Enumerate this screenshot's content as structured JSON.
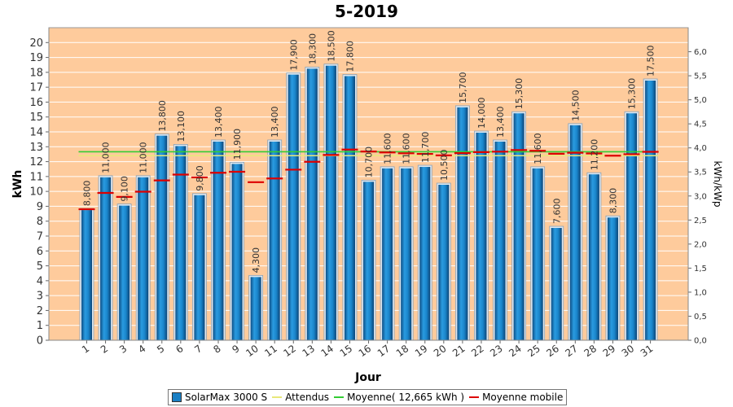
{
  "chart_data": {
    "type": "bar",
    "title": "5-2019",
    "xlabel": "Jour",
    "ylabel": "kWh",
    "y2label": "kWh/kWp",
    "ylim": [
      0,
      21
    ],
    "y2lim": [
      0,
      6.5
    ],
    "yticks": [
      "0",
      "1",
      "2",
      "3",
      "4",
      "5",
      "6",
      "7",
      "8",
      "9",
      "10",
      "11",
      "12",
      "13",
      "14",
      "15",
      "16",
      "17",
      "18",
      "19",
      "20"
    ],
    "y2ticks": [
      "0,0",
      "0,5",
      "1,0",
      "1,5",
      "2,0",
      "2,5",
      "3,0",
      "3,5",
      "4,0",
      "4,5",
      "5,0",
      "5,5",
      "6,0"
    ],
    "categories": [
      "1",
      "2",
      "3",
      "4",
      "5",
      "6",
      "7",
      "8",
      "9",
      "10",
      "11",
      "12",
      "13",
      "14",
      "15",
      "16",
      "17",
      "18",
      "19",
      "20",
      "21",
      "22",
      "23",
      "24",
      "25",
      "26",
      "27",
      "28",
      "29",
      "30",
      "31"
    ],
    "series": [
      {
        "name": "SolarMax 3000 S",
        "type": "bar",
        "color": "#1a7fc4",
        "values": [
          8.8,
          11.0,
          9.1,
          11.0,
          13.8,
          13.1,
          9.8,
          13.4,
          11.9,
          4.3,
          13.4,
          17.9,
          18.3,
          18.5,
          17.8,
          10.7,
          11.6,
          11.6,
          11.7,
          10.5,
          15.7,
          14.0,
          13.4,
          15.3,
          11.6,
          7.6,
          14.5,
          11.2,
          8.3,
          15.3,
          17.5
        ],
        "labels": [
          "8,800",
          "11,000",
          "9,100",
          "11,000",
          "13,800",
          "13,100",
          "9,800",
          "13,400",
          "11,900",
          "4,300",
          "13,400",
          "17,900",
          "18,300",
          "18,500",
          "17,800",
          "10,700",
          "11,600",
          "11,600",
          "11,700",
          "10,500",
          "15,700",
          "14,000",
          "13,400",
          "15,300",
          "11,600",
          "7,600",
          "14,500",
          "11,200",
          "8,300",
          "15,300",
          "17,500"
        ]
      },
      {
        "name": "Attendus",
        "type": "line",
        "color": "#e8e87a",
        "values": [
          12.4,
          12.4,
          12.4,
          12.4,
          12.4,
          12.4,
          12.4,
          12.4,
          12.4,
          12.4,
          12.4,
          12.4,
          12.4,
          12.4,
          12.4,
          12.4,
          12.4,
          12.4,
          12.4,
          12.4,
          12.4,
          12.4,
          12.4,
          12.4,
          12.4,
          12.4,
          12.4,
          12.4,
          12.4,
          12.4,
          12.4
        ]
      },
      {
        "name": "Moyenne( 12,665 kWh )",
        "type": "line",
        "color": "#33cc33",
        "values": [
          12.665,
          12.665,
          12.665,
          12.665,
          12.665,
          12.665,
          12.665,
          12.665,
          12.665,
          12.665,
          12.665,
          12.665,
          12.665,
          12.665,
          12.665,
          12.665,
          12.665,
          12.665,
          12.665,
          12.665,
          12.665,
          12.665,
          12.665,
          12.665,
          12.665,
          12.665,
          12.665,
          12.665,
          12.665,
          12.665,
          12.665
        ]
      },
      {
        "name": "Moyenne mobile",
        "type": "step",
        "color": "#dd0000",
        "values": [
          8.8,
          9.9,
          9.63,
          9.98,
          10.74,
          11.13,
          10.94,
          11.25,
          11.32,
          10.62,
          10.87,
          11.46,
          11.99,
          12.45,
          12.81,
          12.68,
          12.62,
          12.56,
          12.52,
          12.42,
          12.57,
          12.64,
          12.67,
          12.78,
          12.73,
          12.53,
          12.6,
          12.55,
          12.4,
          12.5,
          12.66
        ]
      }
    ],
    "grid": true,
    "legend_position": "bottom"
  }
}
